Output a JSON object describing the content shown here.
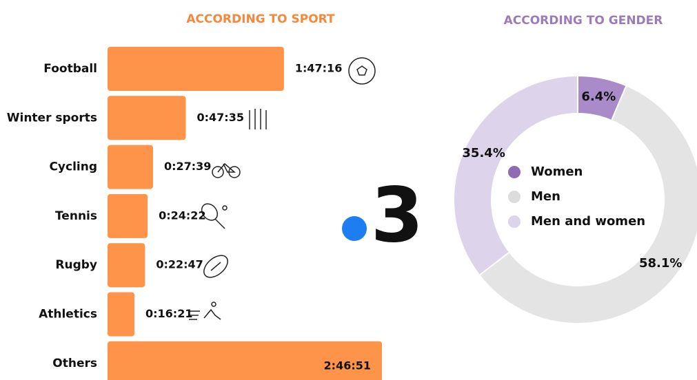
{
  "logo_text": "3",
  "chart_data": [
    {
      "type": "barh",
      "title": "ACCORDING TO SPORT",
      "title_color": "#f5883a",
      "color": "#fe9449",
      "categories": [
        "Football",
        "Winter sports",
        "Cycling",
        "Tennis",
        "Rugby",
        "Athletics",
        "Others"
      ],
      "values": [
        6436,
        2855,
        1659,
        1462,
        1367,
        981,
        10011
      ],
      "value_labels": [
        "1:47:16",
        "0:47:35",
        "0:27:39",
        "0:24:22",
        "0:22:47",
        "0:16:21",
        "2:46:51"
      ]
    },
    {
      "type": "donut",
      "title": "ACCORDING TO GENDER",
      "title_color": "#9b7cb8",
      "categories": [
        "Women",
        "Men",
        "Men and women"
      ],
      "values": [
        6.4,
        58.1,
        35.4
      ],
      "value_labels": [
        "6.4%",
        "58.1%",
        "35.4%"
      ],
      "colors": [
        "#a88bc8",
        "#e4e4e4",
        "#ddd3eb"
      ]
    }
  ]
}
